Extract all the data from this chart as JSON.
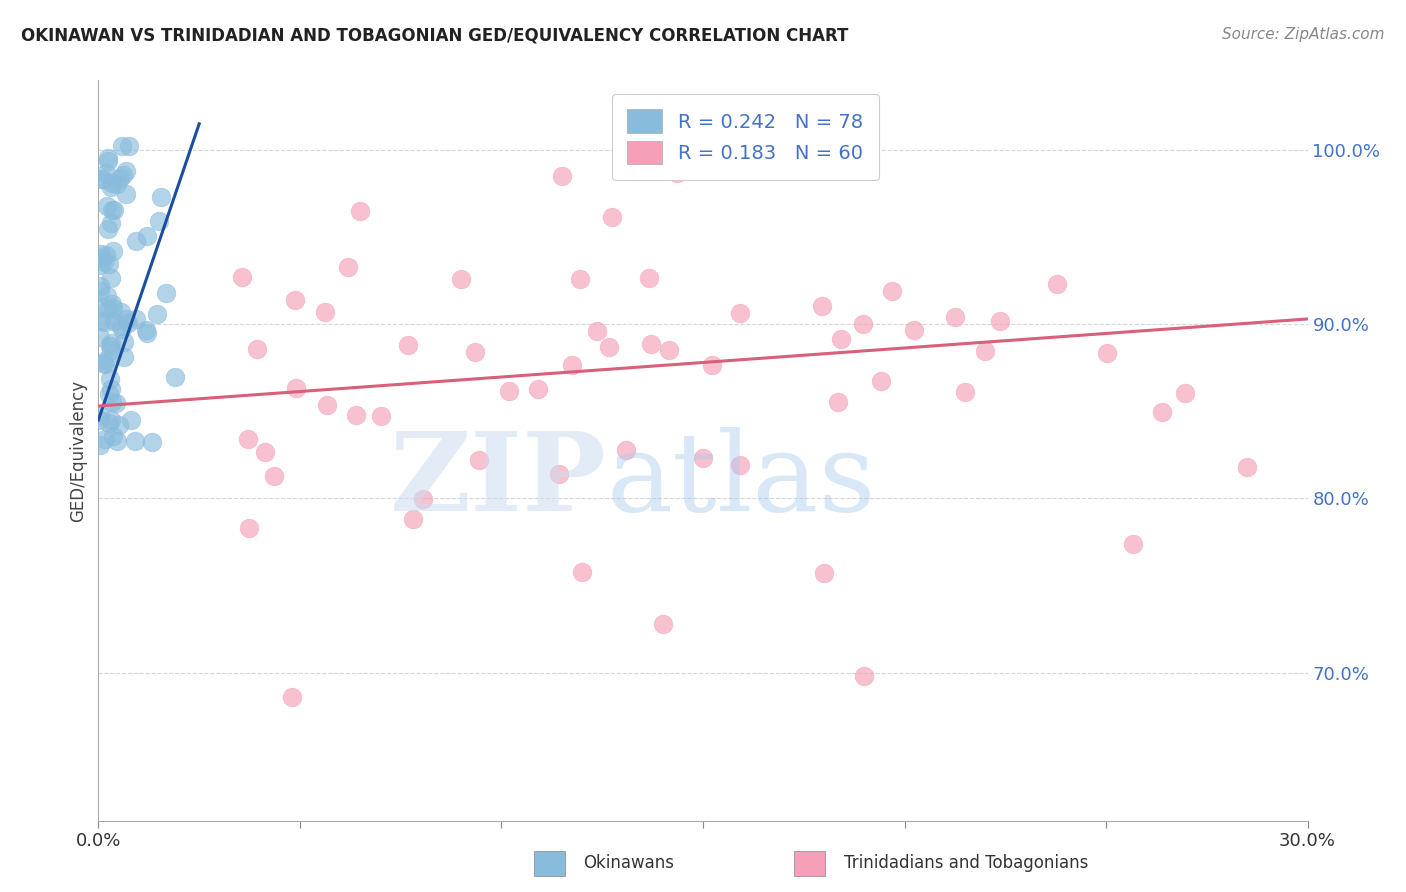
{
  "title": "OKINAWAN VS TRINIDADIAN AND TOBAGONIAN GED/EQUIVALENCY CORRELATION CHART",
  "source": "Source: ZipAtlas.com",
  "ylabel": "GED/Equivalency",
  "ytick_labels": [
    "100.0%",
    "90.0%",
    "80.0%",
    "70.0%"
  ],
  "ytick_values": [
    1.0,
    0.9,
    0.8,
    0.7
  ],
  "xlim": [
    0.0,
    0.3
  ],
  "ylim": [
    0.615,
    1.04
  ],
  "blue_color": "#89bcdc",
  "pink_color": "#f5a0b8",
  "trend_blue": "#1a4fa0",
  "trend_pink": "#d9607a",
  "legend_label1": "Okinawans",
  "legend_label2": "Trinidadians and Tobagonians",
  "blue_R": 0.242,
  "blue_N": 78,
  "pink_R": 0.183,
  "pink_N": 60,
  "blue_trend_x": [
    0.0,
    0.025
  ],
  "blue_trend_y": [
    0.845,
    1.015
  ],
  "pink_trend_x": [
    0.0,
    0.3
  ],
  "pink_trend_y": [
    0.853,
    0.903
  ]
}
